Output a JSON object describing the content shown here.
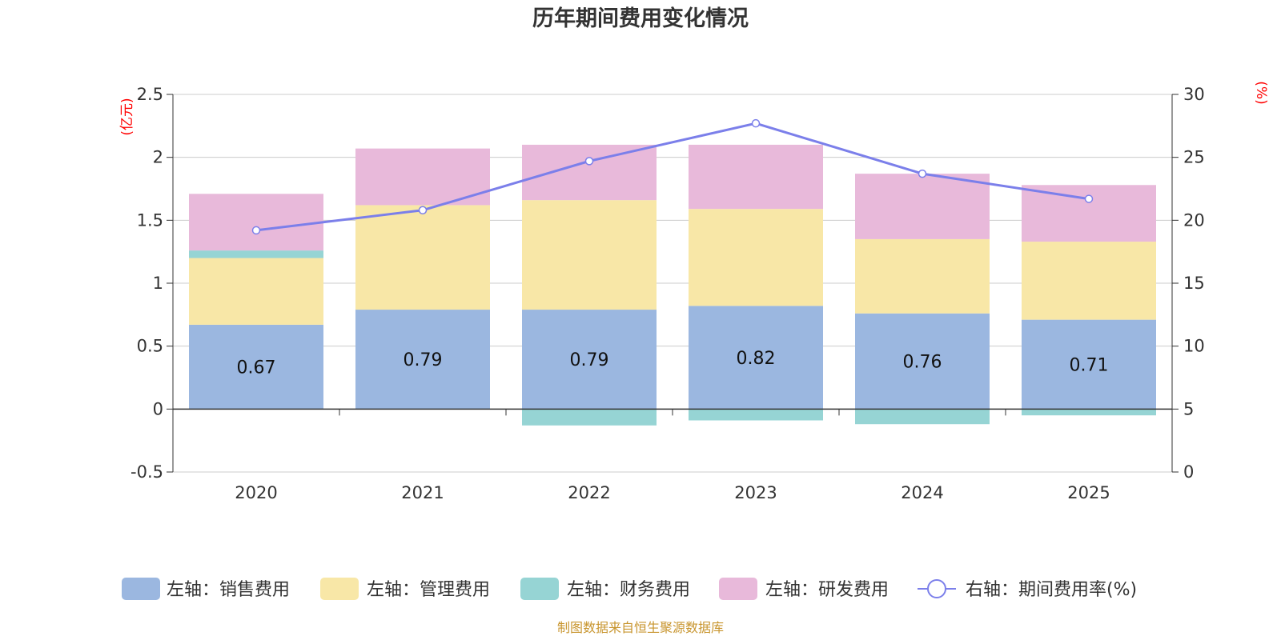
{
  "chart_data": {
    "type": "bar",
    "stacked": true,
    "title": "历年期间费用变化情况",
    "categories": [
      "2020",
      "2021",
      "2022",
      "2023",
      "2024",
      "2025"
    ],
    "y_left": {
      "unit": "(亿元)",
      "range": [
        -0.5,
        2.5
      ],
      "ticks": [
        -0.5,
        0,
        0.5,
        1,
        1.5,
        2,
        2.5
      ],
      "tick_labels": [
        "-0.5",
        "0",
        "0.5",
        "1",
        "1.5",
        "2",
        "2.5"
      ]
    },
    "y_right": {
      "unit": "(%)",
      "range": [
        0,
        30
      ],
      "ticks": [
        0,
        5,
        10,
        15,
        20,
        25,
        30
      ],
      "tick_labels": [
        "0",
        "5",
        "10",
        "15",
        "20",
        "25",
        "30"
      ]
    },
    "series": [
      {
        "name": "左轴：销售费用",
        "axis": "left",
        "color": "#9bb7e0",
        "values": [
          0.67,
          0.79,
          0.79,
          0.82,
          0.76,
          0.71
        ],
        "labels": [
          "0.67",
          "0.79",
          "0.79",
          "0.82",
          "0.76",
          "0.71"
        ]
      },
      {
        "name": "左轴：管理费用",
        "axis": "left",
        "color": "#f8e7a7",
        "values": [
          0.53,
          0.83,
          0.87,
          0.77,
          0.59,
          0.62
        ]
      },
      {
        "name": "左轴：财务费用",
        "axis": "left",
        "color": "#96d4d4",
        "values": [
          0.06,
          0.0,
          -0.13,
          -0.09,
          -0.12,
          -0.05
        ]
      },
      {
        "name": "左轴：研发费用",
        "axis": "left",
        "color": "#e8b9da",
        "values": [
          0.45,
          0.45,
          0.44,
          0.51,
          0.52,
          0.45
        ]
      },
      {
        "name": "右轴：期间费用率(%)",
        "axis": "right",
        "type": "line",
        "color": "#7b7fea",
        "values": [
          19.2,
          20.8,
          24.7,
          27.7,
          23.7,
          21.7
        ]
      }
    ],
    "legend_position": "bottom",
    "source": "制图数据来自恒生聚源数据库"
  }
}
